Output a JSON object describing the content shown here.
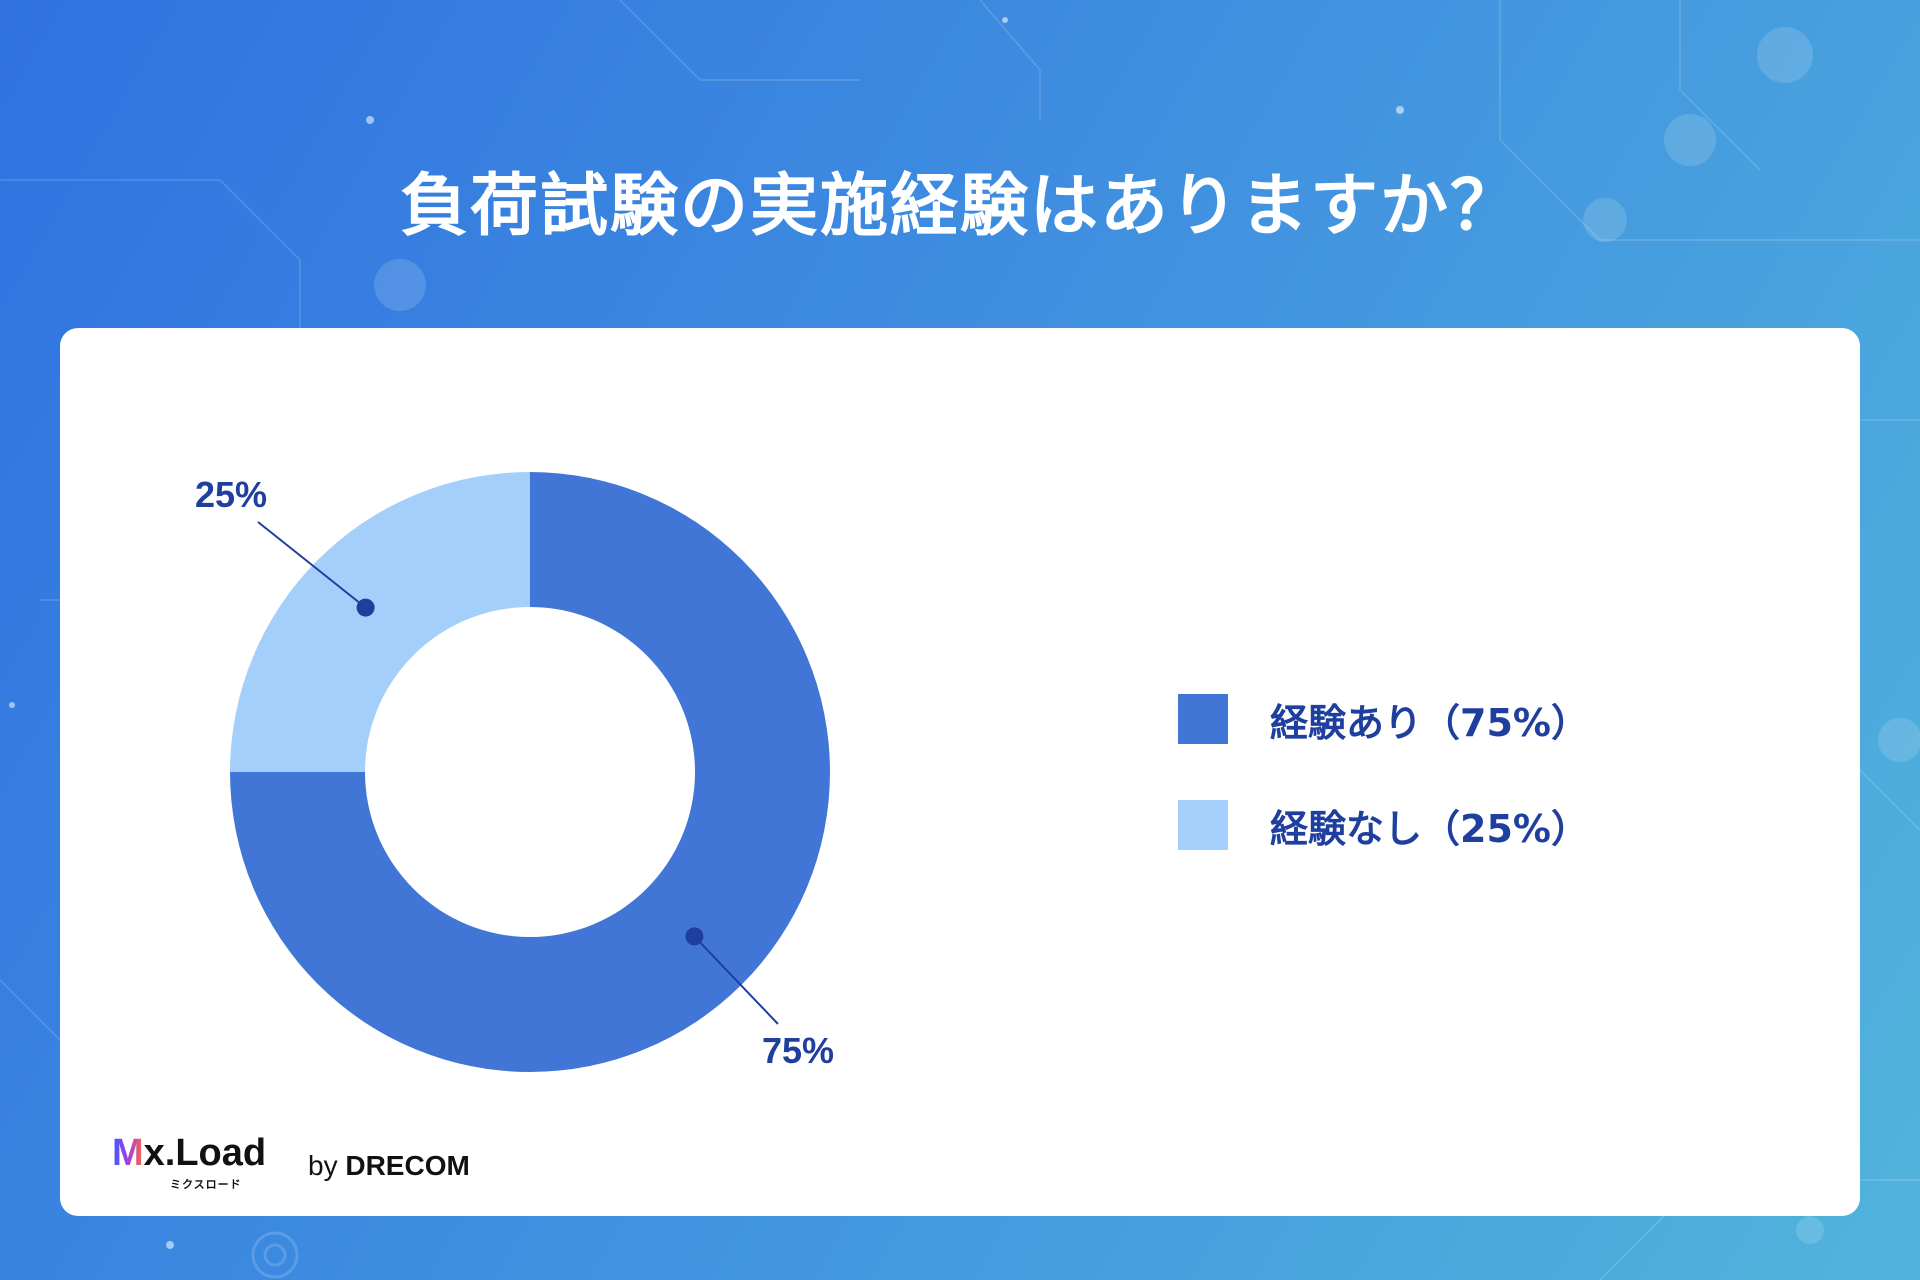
{
  "title": "負荷試験の実施経験はありますか？",
  "chart_data": {
    "type": "pie",
    "donut": true,
    "categories": [
      "経験あり（75%）",
      "経験なし（25%）"
    ],
    "values": [
      75,
      25
    ],
    "data_labels": [
      "75%",
      "25%"
    ],
    "colors": [
      "#4176d6",
      "#a4cffb"
    ],
    "legend_position": "right"
  },
  "legend": {
    "items": [
      {
        "label": "経験あり（75%）",
        "color": "#4176d6"
      },
      {
        "label": "経験なし（25%）",
        "color": "#a4cffb"
      }
    ]
  },
  "branding": {
    "logo_text": "x.Load",
    "logo_m": "M",
    "logo_kana": "ミクスロード",
    "by": "by",
    "company": "DRECOM"
  },
  "colors": {
    "accent": "#1f3f9e",
    "background_start": "#2f72e0",
    "background_end": "#52b4dc"
  }
}
